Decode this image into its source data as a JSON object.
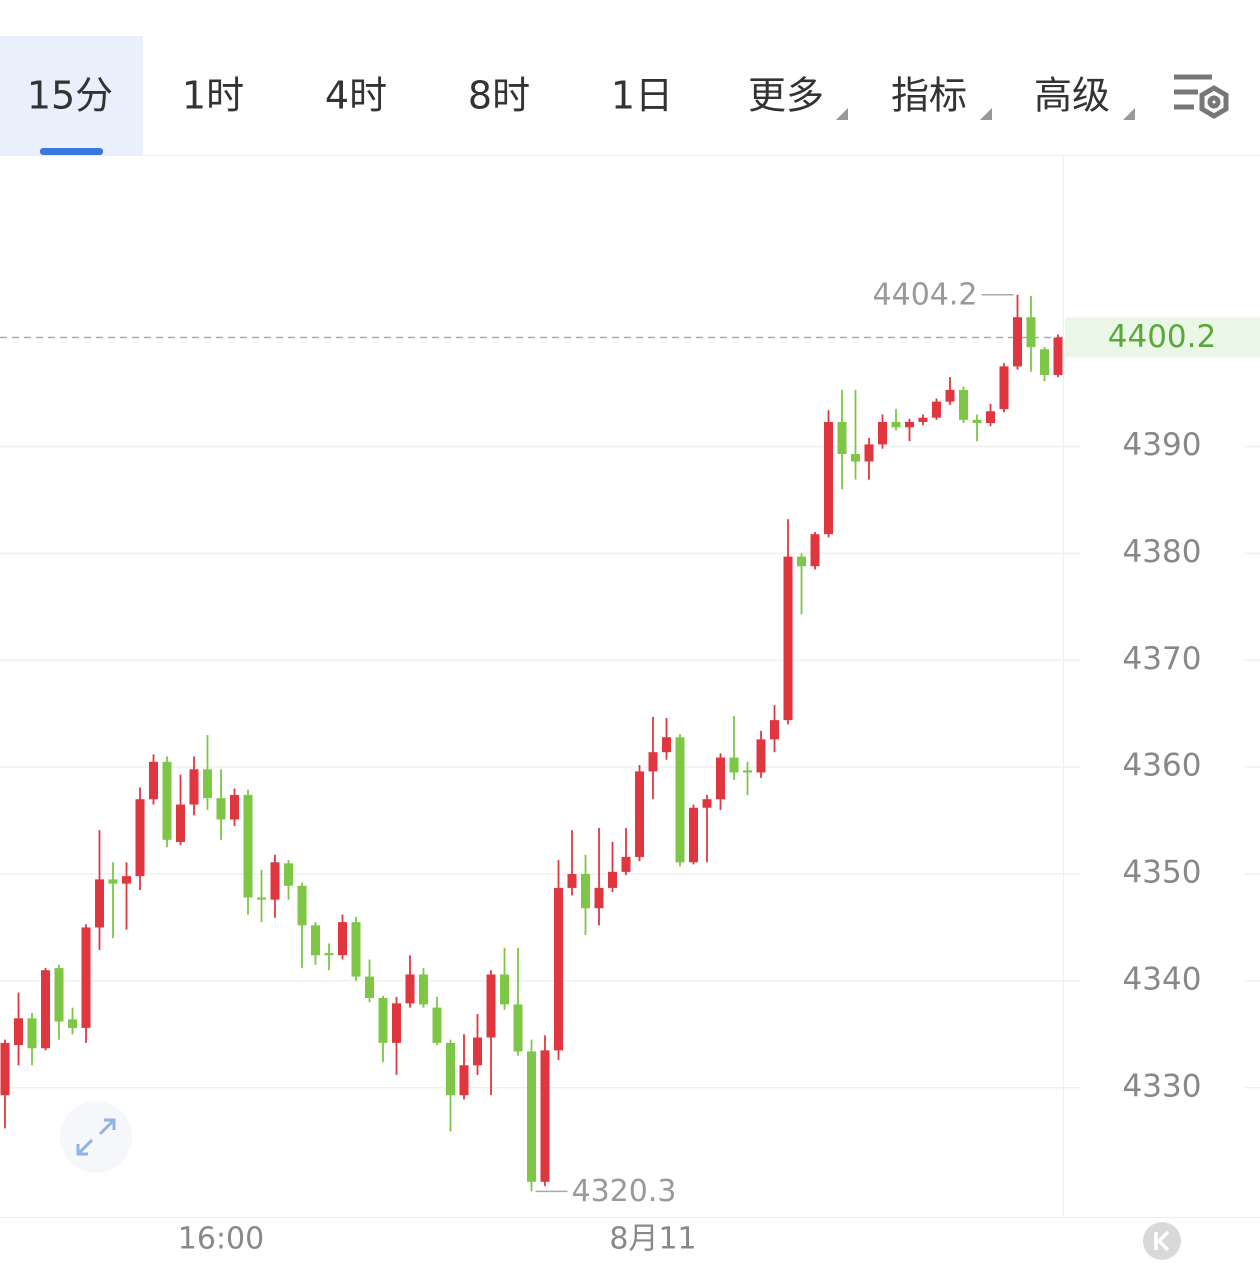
{
  "tabs": [
    "15分",
    "1时",
    "4时",
    "8时",
    "1日",
    "更多",
    "指标",
    "高级"
  ],
  "chart_data": {
    "type": "candlestick",
    "categories": [
      null,
      null,
      null,
      null,
      null,
      null,
      null,
      null,
      null,
      null,
      null,
      null,
      null,
      null,
      null,
      null,
      "16:00",
      null,
      null,
      null,
      null,
      null,
      null,
      null,
      null,
      null,
      null,
      null,
      null,
      null,
      null,
      null,
      null,
      null,
      null,
      null,
      null,
      null,
      null,
      null,
      null,
      null,
      null,
      null,
      null,
      null,
      null,
      null,
      "8月11",
      null,
      null,
      null,
      null,
      null,
      null,
      null,
      null,
      null,
      null,
      null,
      null,
      null,
      null,
      null,
      null,
      null,
      null,
      null,
      null,
      null,
      null,
      null,
      null,
      null,
      null,
      null,
      null,
      null,
      null
    ],
    "ohlc": [
      [
        4329.3,
        4334.5,
        4326.2,
        4334.2
      ],
      [
        4334.0,
        4338.9,
        4332.1,
        4336.5
      ],
      [
        4336.5,
        4337.0,
        4332.1,
        4333.7
      ],
      [
        4333.7,
        4341.2,
        4333.5,
        4341.0
      ],
      [
        4341.2,
        4341.5,
        4334.5,
        4336.2
      ],
      [
        4336.4,
        4337.5,
        4335.0,
        4335.6
      ],
      [
        4335.6,
        4345.3,
        4334.2,
        4345.0
      ],
      [
        4345.0,
        4354.1,
        4342.9,
        4349.5
      ],
      [
        4349.5,
        4351.1,
        4344.0,
        4349.1
      ],
      [
        4349.1,
        4351.1,
        4344.8,
        4349.8
      ],
      [
        4349.8,
        4358.1,
        4348.5,
        4357.0
      ],
      [
        4357.0,
        4361.2,
        4356.5,
        4360.5
      ],
      [
        4360.5,
        4361.0,
        4352.5,
        4353.2
      ],
      [
        4353.0,
        4359.3,
        4352.7,
        4356.5
      ],
      [
        4356.5,
        4361.0,
        4355.5,
        4359.8
      ],
      [
        4359.8,
        4363.0,
        4356.0,
        4357.1
      ],
      [
        4357.1,
        4359.8,
        4353.2,
        4355.1
      ],
      [
        4355.1,
        4358.0,
        4354.5,
        4357.4
      ],
      [
        4357.4,
        4357.9,
        4346.2,
        4347.8
      ],
      [
        4347.8,
        4350.4,
        4345.5,
        4347.6
      ],
      [
        4347.6,
        4351.8,
        4345.9,
        4351.1
      ],
      [
        4351.0,
        4351.3,
        4347.6,
        4348.9
      ],
      [
        4348.9,
        4349.2,
        4341.2,
        4345.2
      ],
      [
        4345.2,
        4345.5,
        4341.5,
        4342.4
      ],
      [
        4342.6,
        4343.5,
        4341.0,
        4342.4
      ],
      [
        4342.4,
        4346.2,
        4342.0,
        4345.5
      ],
      [
        4345.5,
        4346.0,
        4340.0,
        4340.4
      ],
      [
        4340.4,
        4342.0,
        4338.0,
        4338.4
      ],
      [
        4338.4,
        4338.6,
        4332.4,
        4334.2
      ],
      [
        4334.2,
        4338.5,
        4331.2,
        4337.9
      ],
      [
        4337.9,
        4342.4,
        4337.5,
        4340.6
      ],
      [
        4340.6,
        4341.2,
        4337.5,
        4337.8
      ],
      [
        4337.5,
        4338.5,
        4334.0,
        4334.2
      ],
      [
        4334.2,
        4334.5,
        4325.9,
        4329.3
      ],
      [
        4329.3,
        4335.0,
        4328.9,
        4332.1
      ],
      [
        4332.1,
        4336.9,
        4331.2,
        4334.7
      ],
      [
        4334.7,
        4341.0,
        4329.3,
        4340.6
      ],
      [
        4340.6,
        4343.1,
        4337.3,
        4337.8
      ],
      [
        4337.8,
        4343.1,
        4333.0,
        4333.4
      ],
      [
        4333.4,
        4334.5,
        4320.3,
        4321.2
      ],
      [
        4321.2,
        4334.9,
        4320.8,
        4333.5
      ],
      [
        4333.5,
        4351.3,
        4332.6,
        4348.7
      ],
      [
        4348.7,
        4354.1,
        4348.0,
        4350.0
      ],
      [
        4350.0,
        4351.8,
        4344.3,
        4346.8
      ],
      [
        4346.8,
        4354.3,
        4345.2,
        4348.7
      ],
      [
        4348.7,
        4353.0,
        4348.3,
        4350.2
      ],
      [
        4350.2,
        4354.3,
        4349.9,
        4351.6
      ],
      [
        4351.6,
        4360.2,
        4351.2,
        4359.6
      ],
      [
        4359.6,
        4364.7,
        4357.0,
        4361.4
      ],
      [
        4361.4,
        4364.6,
        4360.7,
        4362.8
      ],
      [
        4362.8,
        4363.1,
        4350.7,
        4351.1
      ],
      [
        4351.1,
        4356.5,
        4350.9,
        4356.2
      ],
      [
        4356.2,
        4357.4,
        4351.1,
        4357.0
      ],
      [
        4357.0,
        4361.3,
        4356.0,
        4360.9
      ],
      [
        4360.9,
        4364.8,
        4358.8,
        4359.5
      ],
      [
        4359.7,
        4360.5,
        4357.4,
        4359.5
      ],
      [
        4359.5,
        4363.4,
        4359.0,
        4362.6
      ],
      [
        4362.6,
        4365.8,
        4361.4,
        4364.4
      ],
      [
        4364.4,
        4383.2,
        4364.0,
        4379.7
      ],
      [
        4379.7,
        4380.0,
        4374.3,
        4378.8
      ],
      [
        4378.8,
        4382.0,
        4378.5,
        4381.8
      ],
      [
        4381.8,
        4393.4,
        4381.5,
        4392.3
      ],
      [
        4392.3,
        4395.3,
        4386.0,
        4389.3
      ],
      [
        4389.3,
        4395.3,
        4386.9,
        4388.6
      ],
      [
        4388.6,
        4390.8,
        4386.9,
        4390.2
      ],
      [
        4390.2,
        4393.0,
        4389.8,
        4392.3
      ],
      [
        4392.3,
        4393.5,
        4391.5,
        4391.8
      ],
      [
        4391.8,
        4392.6,
        4390.5,
        4392.3
      ],
      [
        4392.3,
        4393.0,
        4392.0,
        4392.7
      ],
      [
        4392.7,
        4394.5,
        4392.5,
        4394.2
      ],
      [
        4394.2,
        4396.5,
        4393.9,
        4395.3
      ],
      [
        4395.3,
        4395.6,
        4392.2,
        4392.5
      ],
      [
        4392.5,
        4393.0,
        4390.5,
        4392.2
      ],
      [
        4392.2,
        4394.0,
        4391.9,
        4393.3
      ],
      [
        4393.5,
        4397.8,
        4393.2,
        4397.5
      ],
      [
        4397.5,
        4404.2,
        4397.2,
        4402.1
      ],
      [
        4402.1,
        4404.1,
        4397.0,
        4399.3
      ],
      [
        4399.1,
        4399.3,
        4396.1,
        4396.7
      ],
      [
        4396.7,
        4400.5,
        4396.5,
        4400.2
      ]
    ],
    "up_color": "#e0363f",
    "down_color": "#7dc646",
    "ylim": [
      4318,
      4417
    ],
    "yticks": [
      4330,
      4340,
      4350,
      4360,
      4370,
      4380,
      4390
    ],
    "grid": true,
    "last_price": 4400.2,
    "high_marker": 4404.2,
    "low_marker": 4320.3
  }
}
